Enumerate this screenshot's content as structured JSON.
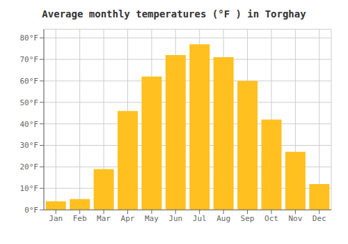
{
  "chart_data": {
    "type": "bar",
    "title": "Average monthly temperatures (°F ) in Torghay",
    "categories": [
      "Jan",
      "Feb",
      "Mar",
      "Apr",
      "May",
      "Jun",
      "Jul",
      "Aug",
      "Sep",
      "Oct",
      "Nov",
      "Dec"
    ],
    "values": [
      4,
      5,
      19,
      46,
      62,
      72,
      77,
      71,
      60,
      42,
      27,
      12
    ],
    "color": "#FFC020",
    "ylim": [
      0,
      84
    ],
    "yticks": [
      {
        "value": 0,
        "label": "0°F"
      },
      {
        "value": 10,
        "label": "10°F"
      },
      {
        "value": 20,
        "label": "20°F"
      },
      {
        "value": 30,
        "label": "30°F"
      },
      {
        "value": 40,
        "label": "40°F"
      },
      {
        "value": 50,
        "label": "50°F"
      },
      {
        "value": 60,
        "label": "60°F"
      },
      {
        "value": 70,
        "label": "70°F"
      },
      {
        "value": 80,
        "label": "80°F"
      }
    ],
    "grid": true
  }
}
